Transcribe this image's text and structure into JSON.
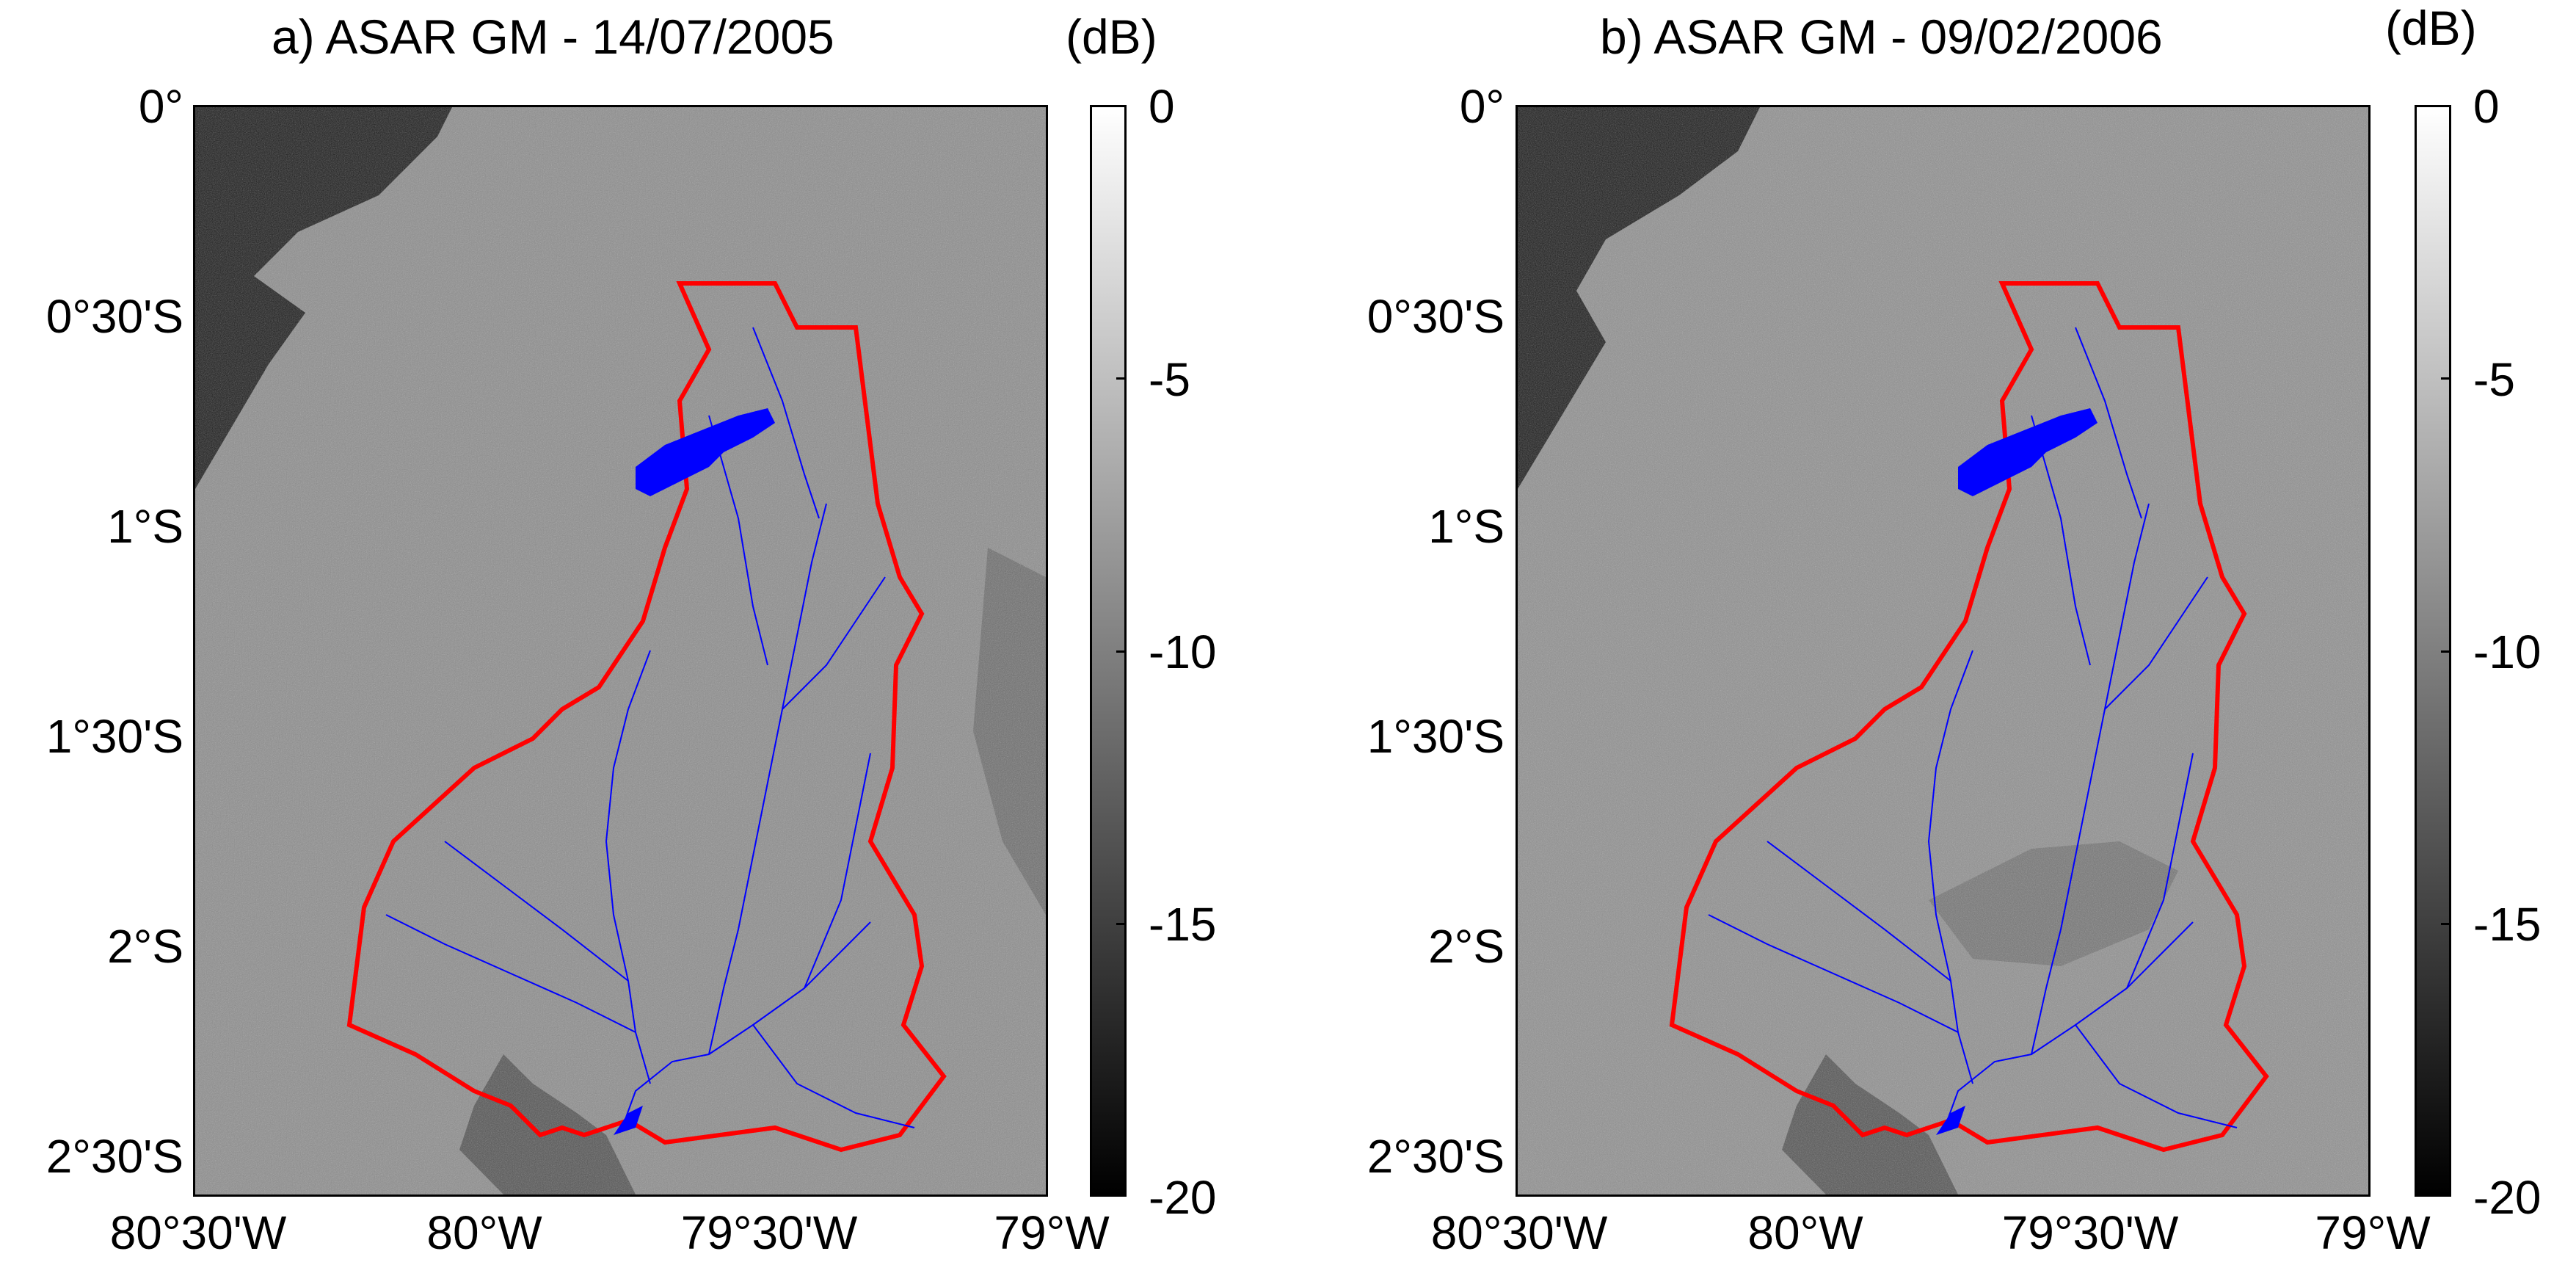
{
  "panels": [
    {
      "title": "a) ASAR GM - 14/07/2005",
      "unit": "(dB)"
    },
    {
      "title": "b) ASAR GM - 09/02/2006",
      "unit": "(dB)"
    }
  ],
  "latitude_labels": [
    "0°",
    "0°30'S",
    "1°S",
    "1°30'S",
    "2°S",
    "2°30'S"
  ],
  "longitude_labels": [
    "80°30'W",
    "80°W",
    "79°30'W",
    "79°W"
  ],
  "colorbar": {
    "labels": [
      "0",
      "-5",
      "-10",
      "-15",
      "-20"
    ],
    "range_db": [
      -20,
      0
    ],
    "colormap": "grayscale"
  },
  "colors": {
    "basin_boundary": "#ff0000",
    "river_network": "#0000ff",
    "sea": "#1a1a1a",
    "land": "#8c8c8c"
  }
}
